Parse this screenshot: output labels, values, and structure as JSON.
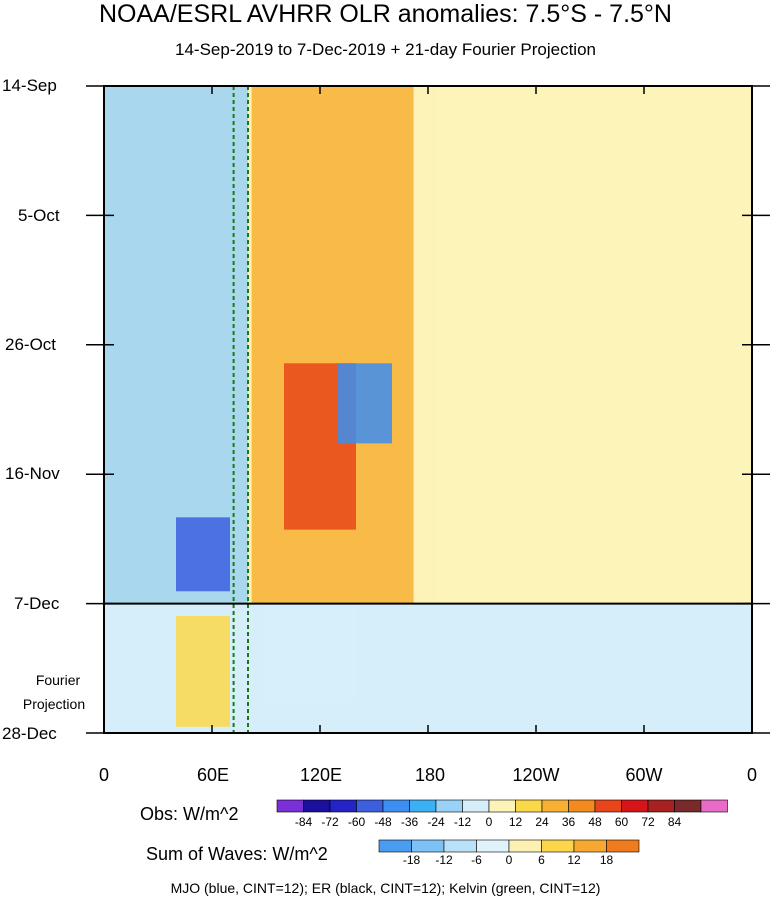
{
  "header": {
    "title": "NOAA/ESRL AVHRR OLR anomalies: 7.5°S - 7.5°N",
    "subtitle": "14-Sep-2019 to 7-Dec-2019 + 21-day Fourier Projection"
  },
  "projection_label": [
    "Fourier",
    "Projection"
  ],
  "obs_colorbar": {
    "label": "Obs: W/m^2",
    "ticks": [
      "-84",
      "-72",
      "-60",
      "-48",
      "-36",
      "-24",
      "-12",
      "0",
      "12",
      "24",
      "36",
      "48",
      "60",
      "72",
      "84"
    ],
    "colors": [
      "#7b2fd8",
      "#1a0f9e",
      "#2323c8",
      "#3c5fe0",
      "#3d8ef0",
      "#3bb0f5",
      "#9ad2f7",
      "#d5eefa",
      "#fdf3b8",
      "#fbd84a",
      "#f8b033",
      "#f28a1e",
      "#e8461a",
      "#d6151a",
      "#a82020",
      "#7a2a2a",
      "#ea6bc7"
    ]
  },
  "wave_colorbar": {
    "label": "Sum of Waves: W/m^2",
    "ticks": [
      "-18",
      "-12",
      "-6",
      "0",
      "6",
      "12",
      "18"
    ],
    "colors": [
      "#4a9cf0",
      "#7cc2f7",
      "#b9e2fa",
      "#e0f2fb",
      "#fdf0b3",
      "#fbd54a",
      "#f6a830",
      "#f07a1c"
    ]
  },
  "footer": "MJO (blue, CINT=12); ER (black, CINT=12); Kelvin (green, CINT=12)",
  "chart_data": {
    "type": "heatmap",
    "title": "NOAA/ESRL AVHRR OLR anomalies: 7.5°S - 7.5°N",
    "subtitle": "14-Sep-2019 to 7-Dec-2019 + 21-day Fourier Projection",
    "x_ticks": [
      "0",
      "60E",
      "120E",
      "180",
      "120W",
      "60W",
      "0"
    ],
    "x_tick_values": [
      0,
      60,
      120,
      180,
      240,
      300,
      360
    ],
    "y_ticks": [
      "14-Sep",
      "5-Oct",
      "26-Oct",
      "16-Nov",
      "7-Dec",
      "28-Dec"
    ],
    "y_tick_days": [
      0,
      21,
      42,
      63,
      84,
      105
    ],
    "obs_end_day": 84,
    "xlim": [
      0,
      360
    ],
    "ylim_days": [
      0,
      105
    ],
    "dashed_lines_lon": [
      72,
      80
    ],
    "anomaly_regions": [
      {
        "lon": [
          82,
          172
        ],
        "days": [
          0,
          84
        ],
        "value": 30
      },
      {
        "lon": [
          185,
          250
        ],
        "days": [
          0,
          84
        ],
        "value": 8
      },
      {
        "lon": [
          0,
          80
        ],
        "days": [
          0,
          84
        ],
        "value": -18
      },
      {
        "lon": [
          250,
          360
        ],
        "days": [
          0,
          84
        ],
        "value": 10
      },
      {
        "lon": [
          100,
          140
        ],
        "days": [
          45,
          72
        ],
        "value": 48
      },
      {
        "lon": [
          40,
          70
        ],
        "days": [
          70,
          82
        ],
        "value": -60
      },
      {
        "lon": [
          130,
          160
        ],
        "days": [
          45,
          58
        ],
        "value": -45
      },
      {
        "lon": [
          90,
          140
        ],
        "days": [
          84,
          100
        ],
        "value": -12
      },
      {
        "lon": [
          40,
          70
        ],
        "days": [
          86,
          104
        ],
        "value": 12
      }
    ]
  }
}
